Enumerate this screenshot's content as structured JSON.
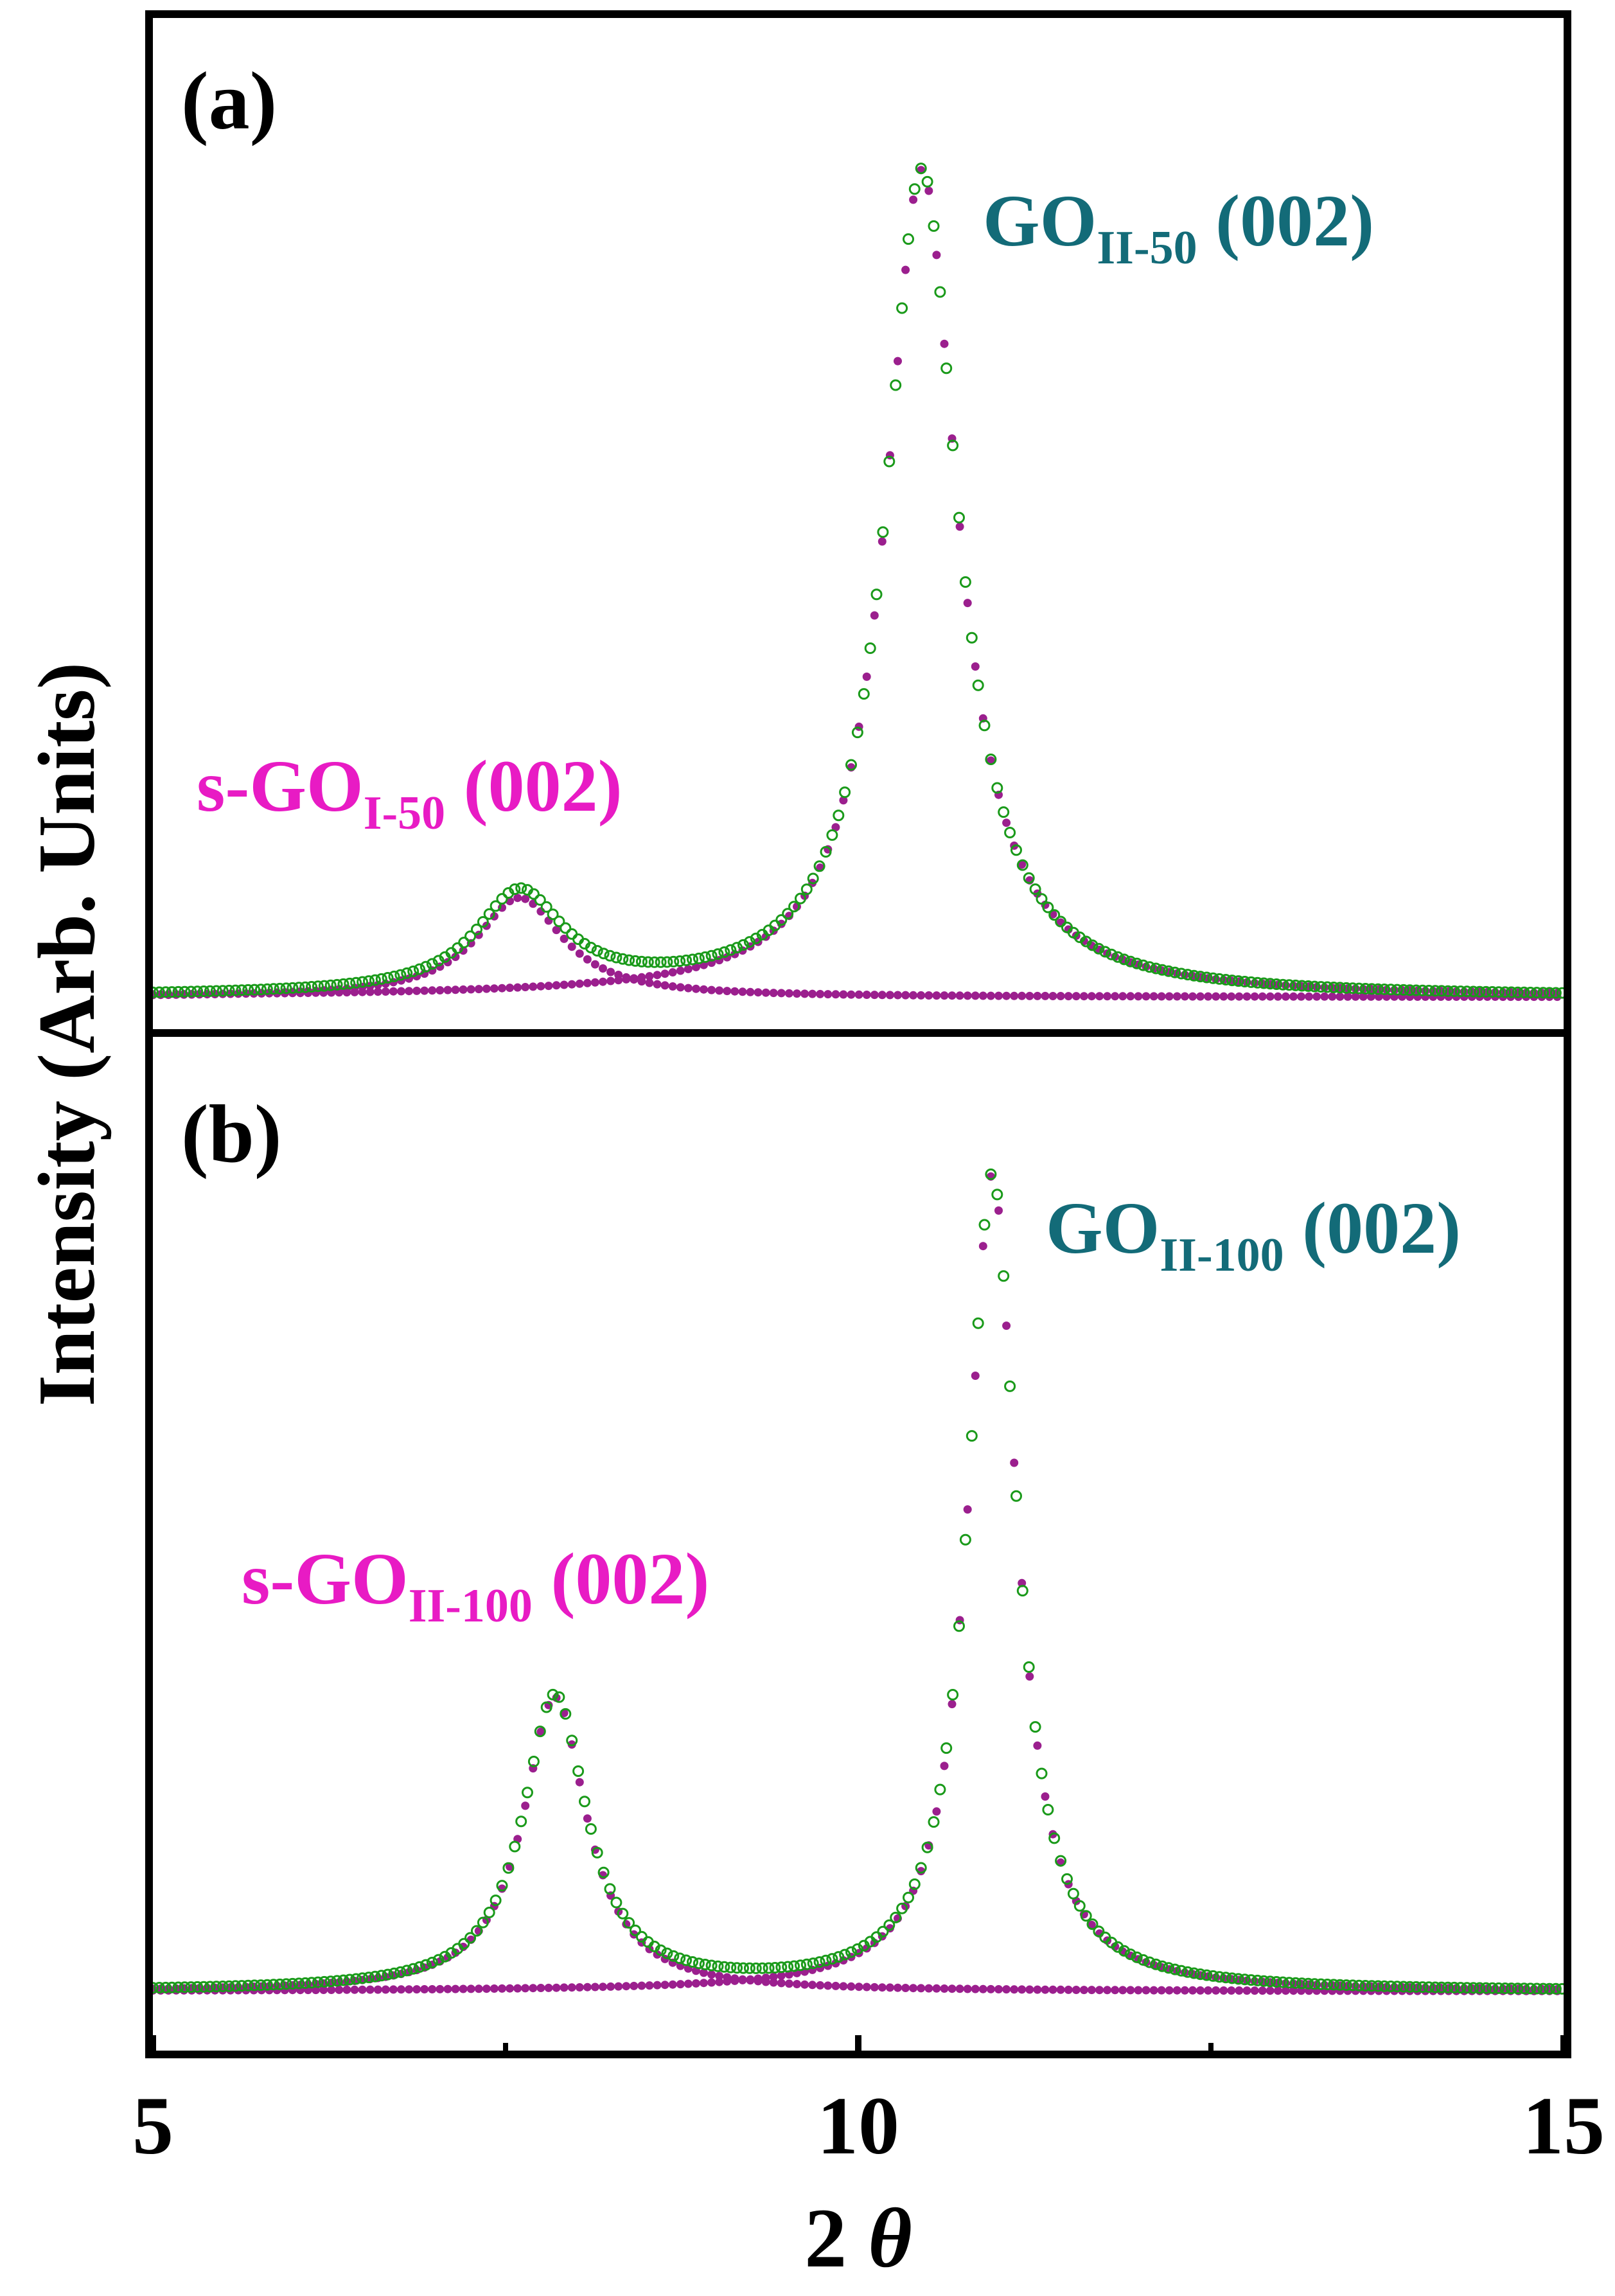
{
  "chart_data": {
    "type": "scatter",
    "ylabel": "Intensity (Arb. Units)",
    "xlabel_prefix": "2 ",
    "xlabel_symbol": "θ",
    "xlim": [
      5,
      15
    ],
    "x_ticks": [
      5,
      10,
      15
    ],
    "x_minor_ticks": [
      7.5,
      12.5
    ],
    "panels": [
      {
        "panel_label": "(a)",
        "ylim": [
          0,
          1.05
        ],
        "peaks": [
          {
            "label_main": "s-GO",
            "label_sub": "I-50",
            "label_suffix": " (002)",
            "center": 7.6,
            "height": 0.12,
            "width": 0.75
          },
          {
            "label_main": "GO",
            "label_sub": "II-50",
            "label_suffix": " (002)",
            "center": 10.45,
            "height": 1.0,
            "width": 0.62
          }
        ]
      },
      {
        "panel_label": "(b)",
        "ylim": [
          0,
          1.05
        ],
        "peaks": [
          {
            "label_main": "s-GO",
            "label_sub": "II-100",
            "label_suffix": " (002)",
            "center": 7.85,
            "height": 0.36,
            "width": 0.55
          },
          {
            "label_main": "GO",
            "label_sub": "II-100",
            "label_suffix": " (002)",
            "center": 10.95,
            "height": 1.0,
            "width": 0.42
          }
        ]
      }
    ],
    "colors": {
      "measured": "#1a9a1a",
      "fit": "#9b1f8e",
      "label_s_go": "#e81bc4",
      "label_go": "#136b78",
      "axis": "#000000"
    }
  }
}
